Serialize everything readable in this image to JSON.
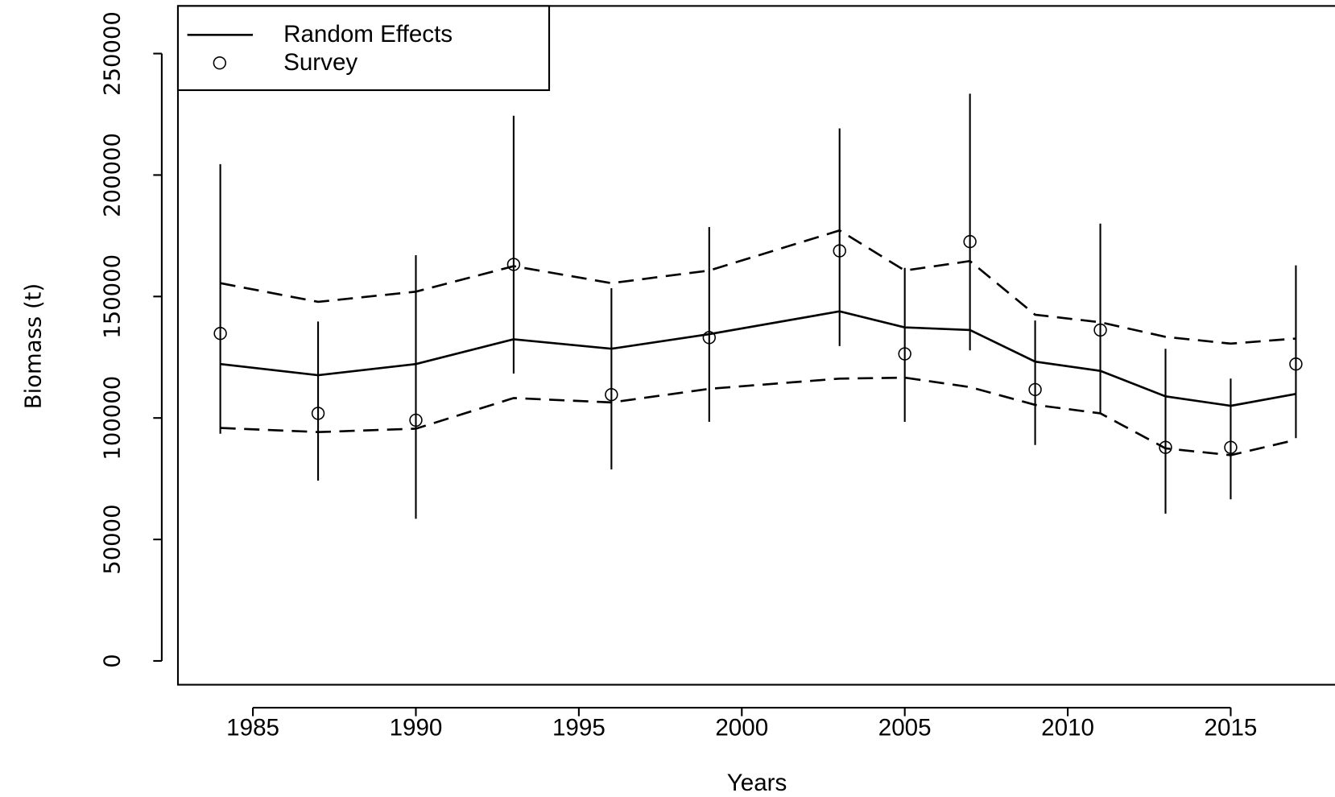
{
  "chart_data": {
    "type": "line",
    "x_label": "Years",
    "y_label": "Biomass (t)",
    "x": [
      1984,
      1987,
      1990,
      1993,
      1996,
      1999,
      2003,
      2005,
      2007,
      2009,
      2011,
      2013,
      2015,
      2017
    ],
    "series": [
      {
        "name": "Random Effects",
        "color": "#000000",
        "style": "solid",
        "values": [
          122200,
          117600,
          122200,
          132400,
          128500,
          134500,
          143900,
          137300,
          136200,
          123200,
          119400,
          108900,
          105000,
          109900
        ]
      },
      {
        "color": "#000000",
        "style": "dashed",
        "values": [
          155500,
          147800,
          152000,
          162500,
          155500,
          160700,
          177200,
          160700,
          164600,
          142500,
          139400,
          133400,
          130600,
          132700
        ]
      },
      {
        "color": "#000000",
        "style": "dashed",
        "values": [
          95900,
          94200,
          95600,
          108200,
          106400,
          112000,
          116200,
          116600,
          112700,
          105400,
          101900,
          87500,
          84700,
          91000
        ]
      }
    ],
    "survey": {
      "name": "Survey",
      "color": "#000000",
      "values": [
        134800,
        101900,
        99100,
        163200,
        109600,
        133100,
        168800,
        126400,
        172600,
        111700,
        136200,
        87900,
        87900,
        122200
      ],
      "lower": [
        93500,
        74200,
        58500,
        118300,
        78800,
        98400,
        129600,
        98400,
        127800,
        88900,
        102200,
        60600,
        66500,
        91700
      ],
      "upper": [
        204500,
        139700,
        167000,
        224400,
        153400,
        178600,
        219200,
        161800,
        233500,
        140100,
        180000,
        128500,
        116200,
        162800
      ]
    },
    "xlim": [
      1982.7,
      2018.2
    ],
    "ylim": [
      -9800,
      269600
    ],
    "xticks": [
      1985,
      1990,
      1995,
      2000,
      2005,
      2010,
      2015
    ],
    "yticks": [
      0,
      50000,
      100000,
      150000,
      200000,
      250000
    ],
    "legend": "topleft"
  }
}
